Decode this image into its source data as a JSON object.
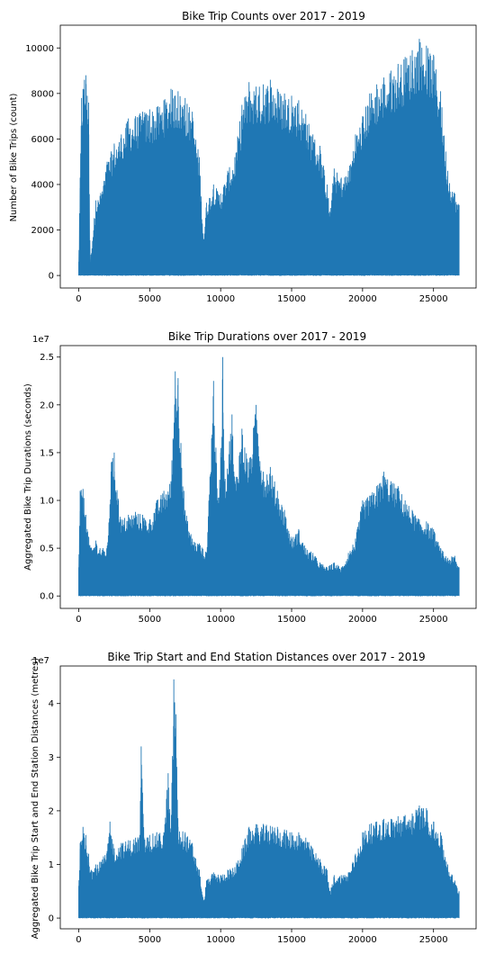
{
  "chart_data": [
    {
      "type": "line",
      "title": "Bike Trip Counts over 2017 - 2019",
      "xlabel": "",
      "ylabel": "Number of Bike Trips (count)",
      "y_offset_label": "",
      "xlim": [
        -1300,
        28000
      ],
      "ylim": [
        -550,
        11000
      ],
      "x_ticks": [
        0,
        5000,
        10000,
        15000,
        20000,
        25000
      ],
      "y_ticks": [
        0,
        2000,
        4000,
        6000,
        8000,
        10000
      ],
      "grid": false,
      "series": [
        {
          "color": "#1f77b4",
          "low": 0,
          "envelope": [
            [
              0,
              600
            ],
            [
              100,
              4300
            ],
            [
              200,
              7800
            ],
            [
              300,
              8200
            ],
            [
              400,
              8600
            ],
            [
              500,
              8800
            ],
            [
              600,
              7900
            ],
            [
              700,
              7600
            ],
            [
              800,
              500
            ],
            [
              1200,
              3300
            ],
            [
              1500,
              3500
            ],
            [
              2000,
              5000
            ],
            [
              2500,
              5800
            ],
            [
              3000,
              6200
            ],
            [
              3500,
              6900
            ],
            [
              4000,
              7000
            ],
            [
              4500,
              7200
            ],
            [
              5000,
              7300
            ],
            [
              5500,
              7400
            ],
            [
              6000,
              7700
            ],
            [
              6500,
              8200
            ],
            [
              7000,
              8100
            ],
            [
              7500,
              7800
            ],
            [
              8000,
              7200
            ],
            [
              8500,
              5200
            ],
            [
              8800,
              1600
            ],
            [
              9000,
              3200
            ],
            [
              9500,
              4000
            ],
            [
              10000,
              3600
            ],
            [
              10500,
              4600
            ],
            [
              11000,
              5200
            ],
            [
              11500,
              7500
            ],
            [
              12000,
              8500
            ],
            [
              12500,
              8300
            ],
            [
              13000,
              8400
            ],
            [
              13500,
              8600
            ],
            [
              14000,
              8200
            ],
            [
              14500,
              8000
            ],
            [
              15000,
              7900
            ],
            [
              15500,
              7700
            ],
            [
              16000,
              7100
            ],
            [
              16500,
              6200
            ],
            [
              17000,
              5700
            ],
            [
              17500,
              4000
            ],
            [
              17700,
              2800
            ],
            [
              18000,
              4700
            ],
            [
              18500,
              4300
            ],
            [
              19000,
              4600
            ],
            [
              19500,
              6200
            ],
            [
              20000,
              7000
            ],
            [
              20500,
              8000
            ],
            [
              21000,
              8400
            ],
            [
              21500,
              8700
            ],
            [
              22000,
              9000
            ],
            [
              22500,
              9300
            ],
            [
              23000,
              9600
            ],
            [
              23500,
              9900
            ],
            [
              24000,
              10400
            ],
            [
              24500,
              10100
            ],
            [
              25000,
              9700
            ],
            [
              25500,
              8100
            ],
            [
              26000,
              4600
            ],
            [
              26500,
              3600
            ],
            [
              26800,
              3100
            ]
          ]
        }
      ]
    },
    {
      "type": "line",
      "title": "Bike Trip Durations over 2017 - 2019",
      "xlabel": "",
      "ylabel": "Aggregated Bike Trip Durations (seconds)",
      "y_offset_label": "1e7",
      "scale": 10000000,
      "xlim": [
        -1300,
        28000
      ],
      "ylim": [
        -0.13,
        2.62
      ],
      "x_ticks": [
        0,
        5000,
        10000,
        15000,
        20000,
        25000
      ],
      "y_ticks": [
        0.0,
        0.5,
        1.0,
        1.5,
        2.0,
        2.5
      ],
      "grid": false,
      "series": [
        {
          "color": "#1f77b4",
          "low": 0,
          "envelope": [
            [
              0,
              0.3
            ],
            [
              100,
              1.1
            ],
            [
              300,
              1.12
            ],
            [
              500,
              0.85
            ],
            [
              700,
              0.62
            ],
            [
              900,
              0.5
            ],
            [
              1200,
              0.58
            ],
            [
              1500,
              0.5
            ],
            [
              2000,
              0.5
            ],
            [
              2300,
              1.4
            ],
            [
              2500,
              1.5
            ],
            [
              2800,
              1.0
            ],
            [
              3000,
              0.8
            ],
            [
              3500,
              0.85
            ],
            [
              4000,
              0.88
            ],
            [
              4500,
              0.85
            ],
            [
              5000,
              0.8
            ],
            [
              5500,
              1.0
            ],
            [
              6000,
              1.1
            ],
            [
              6500,
              1.2
            ],
            [
              6800,
              2.35
            ],
            [
              7000,
              2.28
            ],
            [
              7200,
              1.6
            ],
            [
              7500,
              0.9
            ],
            [
              8000,
              0.6
            ],
            [
              8500,
              0.55
            ],
            [
              9000,
              0.45
            ],
            [
              9500,
              2.25
            ],
            [
              9800,
              1.0
            ],
            [
              10000,
              1.5
            ],
            [
              10150,
              2.5
            ],
            [
              10300,
              1.2
            ],
            [
              10800,
              1.9
            ],
            [
              11000,
              1.2
            ],
            [
              11500,
              1.75
            ],
            [
              12000,
              1.4
            ],
            [
              12500,
              2.0
            ],
            [
              13000,
              1.3
            ],
            [
              13500,
              1.35
            ],
            [
              14000,
              1.1
            ],
            [
              14500,
              0.9
            ],
            [
              15000,
              0.6
            ],
            [
              15500,
              0.7
            ],
            [
              16000,
              0.5
            ],
            [
              16500,
              0.45
            ],
            [
              17000,
              0.35
            ],
            [
              17500,
              0.3
            ],
            [
              18000,
              0.35
            ],
            [
              18500,
              0.3
            ],
            [
              19000,
              0.45
            ],
            [
              19500,
              0.6
            ],
            [
              20000,
              1.0
            ],
            [
              20500,
              1.05
            ],
            [
              21000,
              1.15
            ],
            [
              21500,
              1.3
            ],
            [
              22000,
              1.2
            ],
            [
              22500,
              1.15
            ],
            [
              23000,
              1.0
            ],
            [
              23500,
              0.9
            ],
            [
              24000,
              0.8
            ],
            [
              24500,
              0.78
            ],
            [
              25000,
              0.7
            ],
            [
              25500,
              0.5
            ],
            [
              26000,
              0.4
            ],
            [
              26500,
              0.42
            ],
            [
              26800,
              0.3
            ]
          ]
        }
      ]
    },
    {
      "type": "line",
      "title": "Bike Trip Start and End Station Distances over 2017 - 2019",
      "xlabel": "",
      "ylabel": "Aggregated Bike Trip Start and End Station Distances (metres)",
      "y_offset_label": "1e7",
      "scale": 10000000,
      "xlim": [
        -1300,
        28000
      ],
      "ylim": [
        -0.2,
        4.7
      ],
      "x_ticks": [
        0,
        5000,
        10000,
        15000,
        20000,
        25000
      ],
      "y_ticks": [
        0,
        1,
        2,
        3,
        4
      ],
      "grid": false,
      "series": [
        {
          "color": "#1f77b4",
          "low": 0,
          "envelope": [
            [
              0,
              0.6
            ],
            [
              100,
              1.4
            ],
            [
              300,
              1.7
            ],
            [
              500,
              1.55
            ],
            [
              700,
              1.2
            ],
            [
              900,
              0.9
            ],
            [
              1200,
              1.0
            ],
            [
              1500,
              1.05
            ],
            [
              2000,
              1.25
            ],
            [
              2200,
              1.8
            ],
            [
              2500,
              1.3
            ],
            [
              3000,
              1.4
            ],
            [
              3500,
              1.45
            ],
            [
              4000,
              1.5
            ],
            [
              4300,
              1.55
            ],
            [
              4400,
              3.2
            ],
            [
              4600,
              1.5
            ],
            [
              5000,
              1.55
            ],
            [
              5500,
              1.6
            ],
            [
              6000,
              1.6
            ],
            [
              6300,
              2.7
            ],
            [
              6500,
              1.6
            ],
            [
              6700,
              4.45
            ],
            [
              6850,
              3.8
            ],
            [
              7000,
              1.7
            ],
            [
              7500,
              1.6
            ],
            [
              8000,
              1.4
            ],
            [
              8500,
              0.9
            ],
            [
              8800,
              0.3
            ],
            [
              9000,
              0.7
            ],
            [
              9500,
              0.85
            ],
            [
              10000,
              0.8
            ],
            [
              10500,
              0.9
            ],
            [
              11000,
              0.95
            ],
            [
              11500,
              1.3
            ],
            [
              12000,
              1.7
            ],
            [
              12500,
              1.75
            ],
            [
              13000,
              1.75
            ],
            [
              13500,
              1.72
            ],
            [
              14000,
              1.7
            ],
            [
              14500,
              1.65
            ],
            [
              15000,
              1.6
            ],
            [
              15500,
              1.6
            ],
            [
              16000,
              1.5
            ],
            [
              16500,
              1.3
            ],
            [
              17000,
              1.1
            ],
            [
              17500,
              0.9
            ],
            [
              17700,
              0.5
            ],
            [
              18000,
              0.8
            ],
            [
              18500,
              0.8
            ],
            [
              19000,
              0.85
            ],
            [
              19500,
              1.2
            ],
            [
              20000,
              1.6
            ],
            [
              20500,
              1.75
            ],
            [
              21000,
              1.8
            ],
            [
              21500,
              1.85
            ],
            [
              22000,
              1.85
            ],
            [
              22500,
              1.9
            ],
            [
              23000,
              1.92
            ],
            [
              23500,
              1.95
            ],
            [
              24000,
              2.1
            ],
            [
              24500,
              2.05
            ],
            [
              25000,
              1.8
            ],
            [
              25500,
              1.6
            ],
            [
              26000,
              1.0
            ],
            [
              26500,
              0.7
            ],
            [
              26800,
              0.5
            ]
          ]
        }
      ]
    }
  ]
}
